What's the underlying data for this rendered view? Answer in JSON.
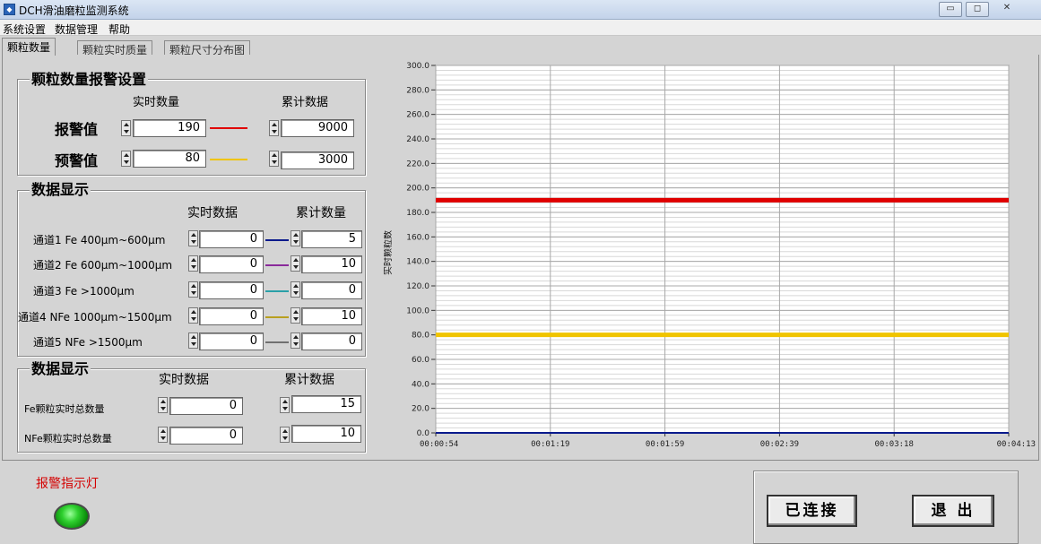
{
  "window": {
    "title": "DCH滑油磨粒监测系统",
    "minimize": "▭",
    "maximize": "◻",
    "close": "✕"
  },
  "menu": [
    "系统设置",
    "数据管理",
    "帮助"
  ],
  "tabs": [
    "颗粒数量",
    "颗粒实时质量",
    "颗粒尺寸分布图"
  ],
  "alarm_settings": {
    "title": "颗粒数量报警设置",
    "col_realtime": "实时数量",
    "col_cumulative": "累计数据",
    "rows": [
      {
        "label": "报警值",
        "realtime": "190",
        "cumulative": "9000",
        "color": "#e00000"
      },
      {
        "label": "预警值",
        "realtime": "80",
        "cumulative": "3000",
        "color": "#f0c400"
      }
    ]
  },
  "data_display": {
    "title": "数据显示",
    "col_realtime": "实时数据",
    "col_cumulative": "累计数量",
    "rows": [
      {
        "label": "通道1 Fe 400μm~600μm",
        "realtime": "0",
        "cumulative": "5",
        "color": "#0a1a8c"
      },
      {
        "label": "通道2 Fe 600μm~1000μm",
        "realtime": "0",
        "cumulative": "10",
        "color": "#8a2a9a"
      },
      {
        "label": "通道3 Fe >1000μm",
        "realtime": "0",
        "cumulative": "0",
        "color": "#2aa0a8"
      },
      {
        "label": "通道4 NFe 1000μm~1500μm",
        "realtime": "0",
        "cumulative": "10",
        "color": "#b8a020"
      },
      {
        "label": "通道5 NFe >1500μm",
        "realtime": "0",
        "cumulative": "0",
        "color": "#707070"
      }
    ]
  },
  "totals": {
    "title": "数据显示",
    "col_realtime": "实时数据",
    "col_cumulative": "累计数据",
    "rows": [
      {
        "label": "Fe颗粒实时总数量",
        "realtime": "0",
        "cumulative": "15"
      },
      {
        "label": "NFe颗粒实时总数量",
        "realtime": "0",
        "cumulative": "10"
      }
    ]
  },
  "chart_data": {
    "type": "line",
    "ylabel": "实时颗粒数",
    "xlabel": "",
    "ylim": [
      0,
      300
    ],
    "yticks": [
      "0.0",
      "20.0",
      "40.0",
      "60.0",
      "80.0",
      "100.0",
      "120.0",
      "140.0",
      "160.0",
      "180.0",
      "200.0",
      "220.0",
      "240.0",
      "260.0",
      "280.0",
      "300.0"
    ],
    "xticks": [
      "00:00:54",
      "00:01:19",
      "00:01:59",
      "00:02:39",
      "00:03:18",
      "00:04:13"
    ],
    "grid": true,
    "series": [
      {
        "values": [
          190,
          190
        ],
        "color": "#e00000"
      },
      {
        "values": [
          80,
          80
        ],
        "color": "#f0c400"
      },
      {
        "values": [
          0,
          0
        ],
        "color": "#0a1a8c"
      }
    ]
  },
  "bottom": {
    "alarm_light_label": "报警指示灯",
    "connect_button": "已连接",
    "exit_button": "退 出"
  }
}
